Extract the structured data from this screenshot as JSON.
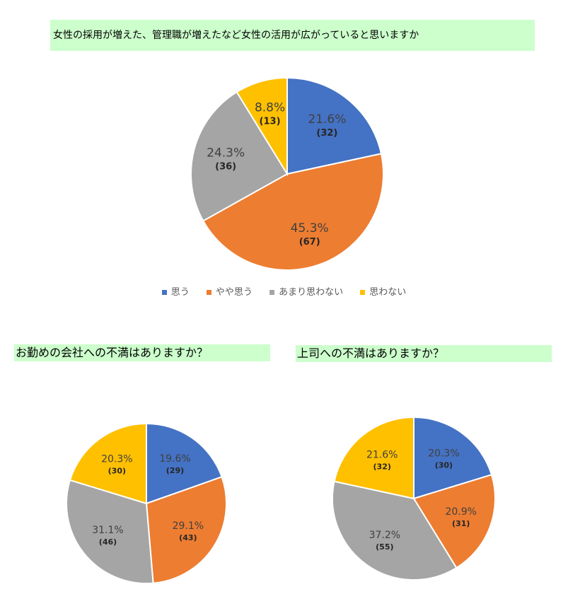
{
  "colors": {
    "omou": "#4472c4",
    "yaya": "#ed7d31",
    "amari": "#a5a5a5",
    "omowanai": "#ffc000"
  },
  "chart_data": [
    {
      "type": "pie",
      "title": "女性の採用が増えた、管理職が増えたなど女性の活用が広がっていると思いますか",
      "categories": [
        "思う",
        "やや思う",
        "あまり思わない",
        "思わない"
      ],
      "values": [
        32,
        67,
        36,
        13
      ],
      "percent_labels": [
        "21.6%",
        "45.3%",
        "24.3%",
        "8.8%"
      ],
      "count_labels": [
        "(32)",
        "(67)",
        "(36)",
        "(13)"
      ],
      "legend": "bottom"
    },
    {
      "type": "pie",
      "title": "お勤めの会社への不満はありますか？",
      "categories": [
        "思う",
        "やや思う",
        "あまり思わない",
        "思わない"
      ],
      "values": [
        29,
        43,
        46,
        30
      ],
      "percent_labels": [
        "19.6%",
        "29.1%",
        "31.1%",
        "20.3%"
      ],
      "count_labels": [
        "(29)",
        "(43)",
        "(46)",
        "(30)"
      ]
    },
    {
      "type": "pie",
      "title": "上司への不満はありますか？",
      "categories": [
        "思う",
        "やや思う",
        "あまり思わない",
        "思わない"
      ],
      "values": [
        30,
        31,
        55,
        32
      ],
      "percent_labels": [
        "20.3%",
        "20.9%",
        "37.2%",
        "21.6%"
      ],
      "count_labels": [
        "(30)",
        "(31)",
        "(55)",
        "(32)"
      ]
    }
  ]
}
